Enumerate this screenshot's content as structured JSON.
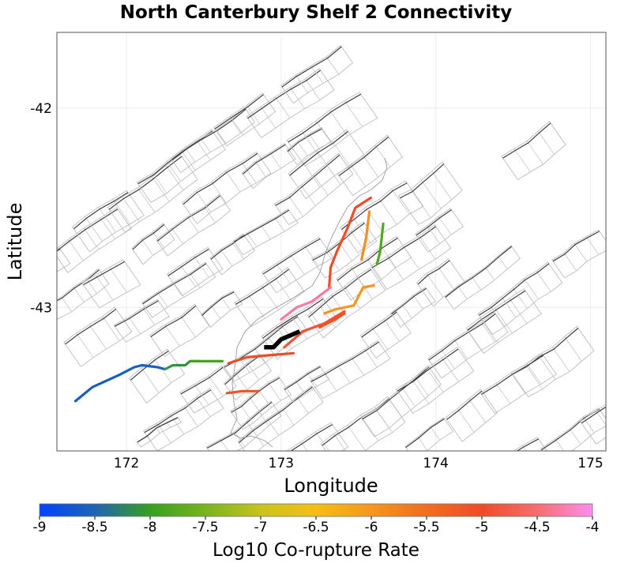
{
  "chart_data": {
    "type": "map",
    "title": "North Canterbury Shelf 2 Connectivity",
    "xlabel": "Longitude",
    "ylabel": "Latitude",
    "xlim": [
      171.55,
      175.1
    ],
    "ylim": [
      -43.72,
      -41.62
    ],
    "x_ticks": [
      172,
      173,
      174,
      175
    ],
    "y_ticks": [
      -42,
      -43
    ],
    "grid": true,
    "colorbar": {
      "label": "Log10 Co-rupture Rate",
      "min": -9,
      "max": -4,
      "ticks": [
        -9,
        -8.5,
        -8,
        -7.5,
        -7,
        -6.5,
        -6,
        -5.5,
        -5,
        -4.5,
        -4
      ],
      "tick_labels": [
        "-9",
        "-8.5",
        "-8",
        "-7.5",
        "-7",
        "-6.5",
        "-6",
        "-5.5",
        "-5",
        "-4.5",
        "-4"
      ],
      "stops": [
        {
          "value": -9,
          "color": "#0044ff"
        },
        {
          "value": -8.5,
          "color": "#1e64b4"
        },
        {
          "value": -8,
          "color": "#37a01e"
        },
        {
          "value": -7.5,
          "color": "#78b41e"
        },
        {
          "value": -7,
          "color": "#c8c31e"
        },
        {
          "value": -6.5,
          "color": "#f5be14"
        },
        {
          "value": -6,
          "color": "#f5961e"
        },
        {
          "value": -5.5,
          "color": "#f06e1e"
        },
        {
          "value": -5,
          "color": "#ef4b28"
        },
        {
          "value": -4.5,
          "color": "#f76e6e"
        },
        {
          "value": -4,
          "color": "#ff8cf0"
        }
      ]
    },
    "target_fault": {
      "name": "North Canterbury Shelf 2",
      "color": "#000000",
      "path": [
        [
          172.89,
          -43.2
        ],
        [
          172.95,
          -43.2
        ],
        [
          173.0,
          -43.16
        ],
        [
          173.12,
          -43.12
        ]
      ]
    },
    "connected_faults": [
      {
        "log10_rate": -8.6,
        "path": [
          [
            171.67,
            -43.47
          ],
          [
            171.78,
            -43.4
          ],
          [
            171.95,
            -43.34
          ],
          [
            172.05,
            -43.3
          ],
          [
            172.1,
            -43.29
          ],
          [
            172.2,
            -43.3
          ],
          [
            172.25,
            -43.31
          ]
        ]
      },
      {
        "log10_rate": -8.1,
        "path": [
          [
            172.25,
            -43.31
          ],
          [
            172.3,
            -43.29
          ],
          [
            172.38,
            -43.29
          ],
          [
            172.41,
            -43.27
          ],
          [
            172.47,
            -43.27
          ]
        ]
      },
      {
        "log10_rate": -7.9,
        "path": [
          [
            172.42,
            -43.27
          ],
          [
            172.5,
            -43.27
          ],
          [
            172.62,
            -43.27
          ]
        ]
      },
      {
        "log10_rate": -7.8,
        "path": [
          [
            173.66,
            -42.58
          ],
          [
            173.64,
            -42.72
          ],
          [
            173.62,
            -42.78
          ]
        ]
      },
      {
        "log10_rate": -5.9,
        "path": [
          [
            173.57,
            -42.52
          ],
          [
            173.55,
            -42.65
          ],
          [
            173.52,
            -42.76
          ]
        ]
      },
      {
        "log10_rate": -6.0,
        "path": [
          [
            173.28,
            -43.03
          ],
          [
            173.35,
            -43.01
          ],
          [
            173.47,
            -42.99
          ],
          [
            173.53,
            -42.9
          ],
          [
            173.6,
            -42.89
          ]
        ]
      },
      {
        "log10_rate": -5.0,
        "path": [
          [
            173.58,
            -42.45
          ],
          [
            173.48,
            -42.5
          ],
          [
            173.43,
            -42.6
          ],
          [
            173.36,
            -42.72
          ],
          [
            173.32,
            -42.8
          ],
          [
            173.31,
            -42.9
          ]
        ]
      },
      {
        "log10_rate": -4.3,
        "path": [
          [
            173.32,
            -42.9
          ],
          [
            173.2,
            -42.97
          ],
          [
            173.1,
            -43.0
          ],
          [
            173.0,
            -43.06
          ]
        ]
      },
      {
        "log10_rate": -4.9,
        "path": [
          [
            173.02,
            -43.2
          ],
          [
            173.14,
            -43.12
          ],
          [
            173.28,
            -43.08
          ],
          [
            173.41,
            -43.02
          ]
        ]
      },
      {
        "log10_rate": -5.1,
        "path": [
          [
            173.25,
            -43.1
          ],
          [
            173.35,
            -43.06
          ],
          [
            173.41,
            -43.03
          ]
        ]
      },
      {
        "log10_rate": -5.0,
        "path": [
          [
            172.66,
            -43.28
          ],
          [
            172.78,
            -43.25
          ],
          [
            172.92,
            -43.24
          ],
          [
            173.08,
            -43.23
          ]
        ]
      },
      {
        "log10_rate": -5.1,
        "path": [
          [
            172.65,
            -43.43
          ],
          [
            172.75,
            -43.42
          ],
          [
            172.85,
            -43.42
          ]
        ]
      }
    ]
  }
}
